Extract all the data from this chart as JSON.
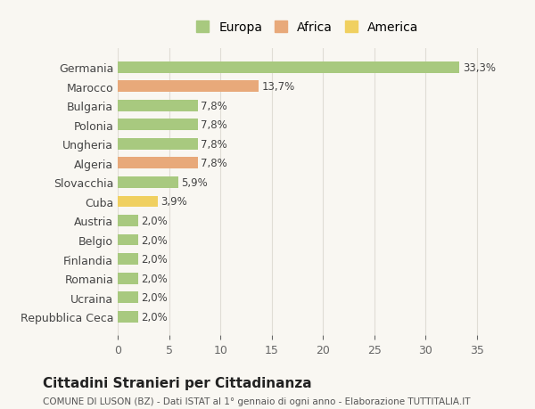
{
  "countries": [
    "Germania",
    "Marocco",
    "Bulgaria",
    "Polonia",
    "Ungheria",
    "Algeria",
    "Slovacchia",
    "Cuba",
    "Austria",
    "Belgio",
    "Finlandia",
    "Romania",
    "Ucraina",
    "Repubblica Ceca"
  ],
  "values": [
    33.3,
    13.7,
    7.8,
    7.8,
    7.8,
    7.8,
    5.9,
    3.9,
    2.0,
    2.0,
    2.0,
    2.0,
    2.0,
    2.0
  ],
  "labels": [
    "33,3%",
    "13,7%",
    "7,8%",
    "7,8%",
    "7,8%",
    "7,8%",
    "5,9%",
    "3,9%",
    "2,0%",
    "2,0%",
    "2,0%",
    "2,0%",
    "2,0%",
    "2,0%"
  ],
  "continents": [
    "Europa",
    "Africa",
    "Europa",
    "Europa",
    "Europa",
    "Africa",
    "Europa",
    "America",
    "Europa",
    "Europa",
    "Europa",
    "Europa",
    "Europa",
    "Europa"
  ],
  "colors": {
    "Europa": "#a8c97f",
    "Africa": "#e8a97a",
    "America": "#f0d060"
  },
  "legend_colors": {
    "Europa": "#a8c97f",
    "Africa": "#e8a97a",
    "America": "#f0d060"
  },
  "title": "Cittadini Stranieri per Cittadinanza",
  "subtitle": "COMUNE DI LUSON (BZ) - Dati ISTAT al 1° gennaio di ogni anno - Elaborazione TUTTITALIA.IT",
  "xlabel": "",
  "xlim": [
    0,
    37
  ],
  "background_color": "#f9f7f2",
  "grid_color": "#e0ddd5",
  "bar_height": 0.6,
  "xticks": [
    0,
    5,
    10,
    15,
    20,
    25,
    30,
    35
  ]
}
